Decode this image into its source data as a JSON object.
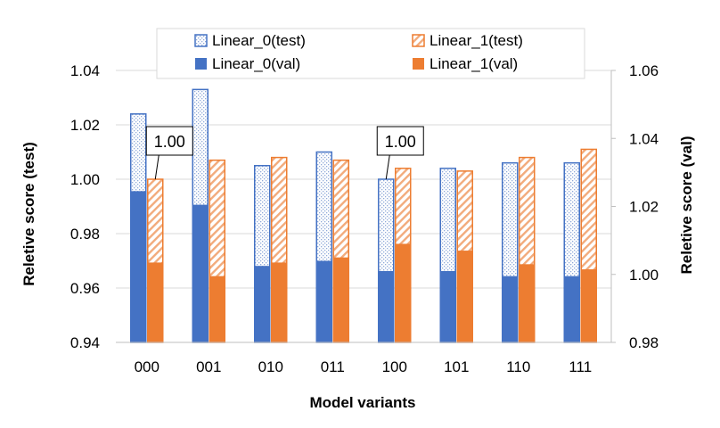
{
  "chart_data": {
    "type": "bar",
    "title": "",
    "xlabel": "Model variants",
    "ylabel_left": "Reletive score (test)",
    "ylabel_right": "Reletive score (val)",
    "categories": [
      "000",
      "001",
      "010",
      "011",
      "100",
      "101",
      "110",
      "111"
    ],
    "y_left": {
      "min": 0.94,
      "max": 1.04,
      "step": 0.02,
      "ticks": [
        "0.94",
        "0.96",
        "0.98",
        "1.00",
        "1.02",
        "1.04"
      ]
    },
    "y_right": {
      "min": 0.98,
      "max": 1.06,
      "step": 0.02,
      "ticks": [
        "0.98",
        "1.00",
        "1.02",
        "1.04",
        "1.06"
      ]
    },
    "gridlines": true,
    "legend_position": "top",
    "series": [
      {
        "key": "l0_test",
        "name": "Linear_0(test)",
        "axis": "left",
        "pattern": "dots",
        "color": "#4472C4",
        "values": [
          1.024,
          1.033,
          1.005,
          1.01,
          1.0,
          1.004,
          1.006,
          1.006
        ]
      },
      {
        "key": "l1_test",
        "name": "Linear_1(test)",
        "axis": "left",
        "pattern": "hatch",
        "color": "#ED7D31",
        "values": [
          1.0,
          1.007,
          1.008,
          1.007,
          1.004,
          1.003,
          1.008,
          1.011
        ]
      },
      {
        "key": "l0_val",
        "name": "Linear_0(val)",
        "axis": "right",
        "pattern": "solid",
        "color": "#4472C4",
        "values": [
          1.0245,
          1.0205,
          1.0025,
          1.004,
          1.001,
          1.001,
          0.9995,
          0.9995
        ]
      },
      {
        "key": "l1_val",
        "name": "Linear_1(val)",
        "axis": "right",
        "pattern": "solid",
        "color": "#ED7D31",
        "values": [
          1.0035,
          0.9995,
          1.0035,
          1.005,
          1.009,
          1.007,
          1.003,
          1.0015
        ]
      }
    ],
    "annotations": [
      {
        "text": "1.00",
        "category": "000",
        "series": "Linear_1(test)"
      },
      {
        "text": "1.00",
        "category": "100",
        "series": "Linear_0(test)"
      }
    ]
  }
}
